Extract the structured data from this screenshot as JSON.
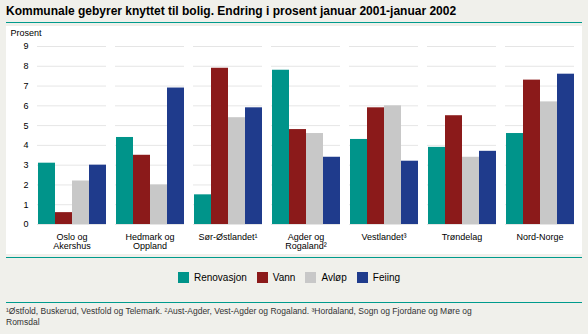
{
  "chart_data": {
    "type": "bar",
    "title": "Kommunale gebyrer knyttet til bolig. Endring i prosent januar 2001-januar 2002",
    "ylabel": "Prosent",
    "categories": [
      "Oslo og\nAkershus",
      "Hedmark og\nOppland",
      "Sør-Østlandet¹",
      "Agder og\nRogaland²",
      "Vestlandet³",
      "Trøndelag",
      "Nord-Norge"
    ],
    "series": [
      {
        "name": "Renovasjon",
        "color": "#00948A",
        "values": [
          3.1,
          4.4,
          1.5,
          7.8,
          4.3,
          3.9,
          4.6
        ]
      },
      {
        "name": "Vann",
        "color": "#8B1A1A",
        "values": [
          0.6,
          3.5,
          7.9,
          4.8,
          5.9,
          5.5,
          7.3
        ]
      },
      {
        "name": "Avløp",
        "color": "#C8C8C8",
        "values": [
          2.2,
          2.0,
          5.4,
          4.6,
          6.0,
          3.4,
          6.2
        ]
      },
      {
        "name": "Feiing",
        "color": "#1F3B8C",
        "values": [
          3.0,
          6.9,
          5.9,
          3.4,
          3.2,
          3.7,
          7.6
        ]
      }
    ],
    "ylim": [
      0,
      9
    ],
    "yticks": [
      0,
      1,
      2,
      3,
      4,
      5,
      6,
      7,
      8,
      9
    ],
    "grid": true,
    "legend": "bottom",
    "footnote": "¹Østfold, Buskerud, Vestfold og Telemark.  ²Aust-Agder, Vest-Agder og Rogaland.  ³Hordaland, Sogn og Fjordane og Møre og\nRomsdal"
  }
}
